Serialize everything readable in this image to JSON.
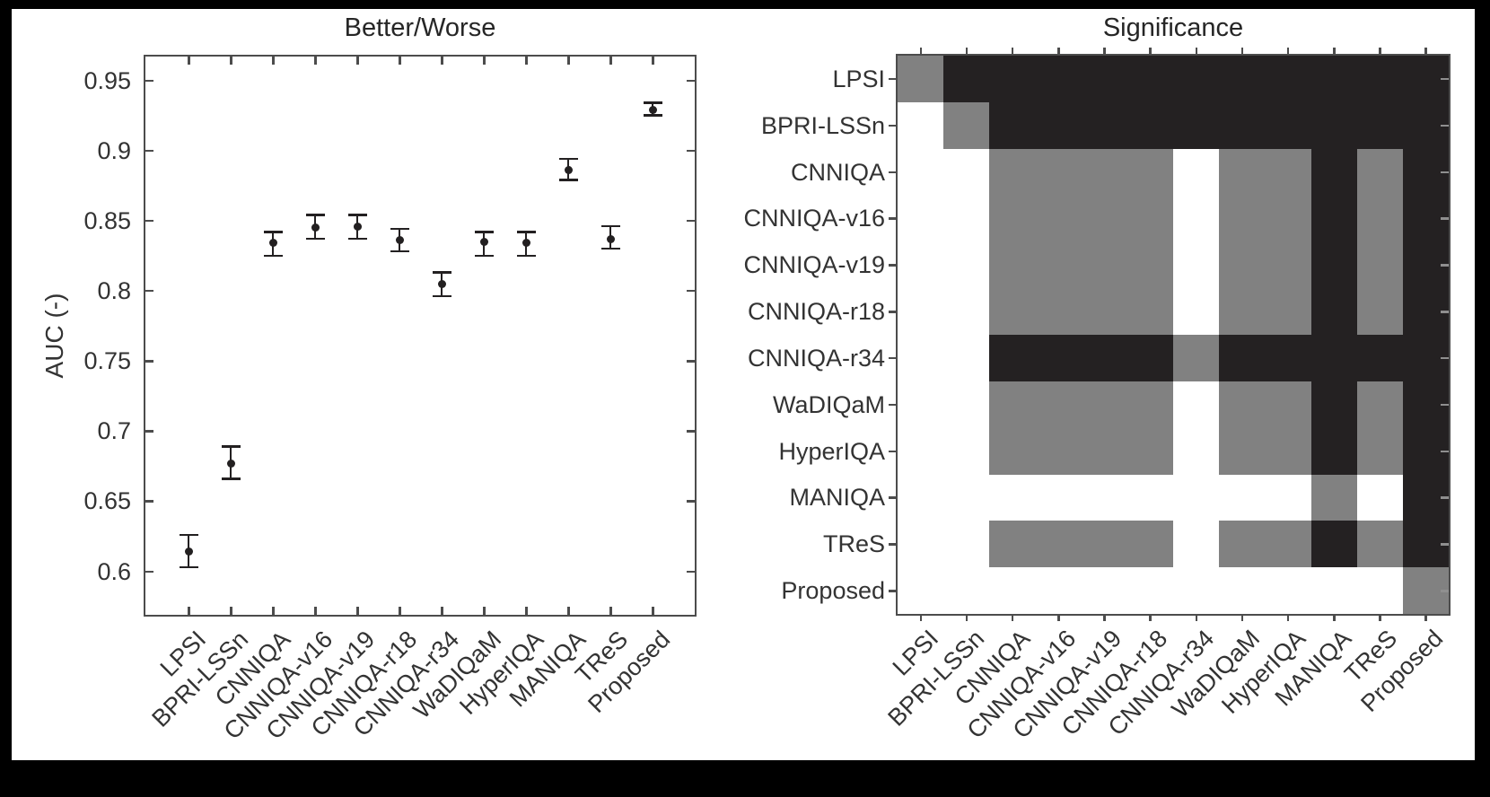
{
  "figure": {
    "panels": [
      {
        "title": "Better/Worse"
      },
      {
        "title": "Significance"
      }
    ]
  },
  "chart_data": [
    {
      "type": "scatter",
      "subtype": "errorbar",
      "title": "Better/Worse",
      "xlabel": "",
      "ylabel": "AUC (-)",
      "categories": [
        "LPSI",
        "BPRI-LSSn",
        "CNNIQA",
        "CNNIQA-v16",
        "CNNIQA-v19",
        "CNNIQA-r18",
        "CNNIQA-r34",
        "WaDIQaM",
        "HyperIQA",
        "MANIQA",
        "TReS",
        "Proposed"
      ],
      "values": [
        0.614,
        0.677,
        0.834,
        0.845,
        0.846,
        0.836,
        0.805,
        0.835,
        0.834,
        0.886,
        0.837,
        0.929
      ],
      "err_low": [
        0.603,
        0.666,
        0.825,
        0.837,
        0.837,
        0.828,
        0.796,
        0.825,
        0.825,
        0.879,
        0.83,
        0.925
      ],
      "err_high": [
        0.626,
        0.689,
        0.842,
        0.854,
        0.854,
        0.844,
        0.813,
        0.842,
        0.842,
        0.894,
        0.846,
        0.934
      ],
      "ylim": [
        0.569,
        0.967
      ],
      "yticks": [
        0.6,
        0.65,
        0.7,
        0.75,
        0.8,
        0.85,
        0.9,
        0.95
      ],
      "ytick_labels": [
        "0.6",
        "0.65",
        "0.7",
        "0.75",
        "0.8",
        "0.85",
        "0.9",
        "0.95"
      ],
      "grid": false,
      "legend": false,
      "marker": "dot-with-error-bars",
      "marker_color": "#232021"
    },
    {
      "type": "heatmap",
      "title": "Significance",
      "rows": [
        "LPSI",
        "BPRI-LSSn",
        "CNNIQA",
        "CNNIQA-v16",
        "CNNIQA-v19",
        "CNNIQA-r18",
        "CNNIQA-r34",
        "WaDIQaM",
        "HyperIQA",
        "MANIQA",
        "TReS",
        "Proposed"
      ],
      "cols": [
        "LPSI",
        "BPRI-LSSn",
        "CNNIQA",
        "CNNIQA-v16",
        "CNNIQA-v19",
        "CNNIQA-r18",
        "CNNIQA-r34",
        "WaDIQaM",
        "HyperIQA",
        "MANIQA",
        "TReS",
        "Proposed"
      ],
      "cells": [
        "gbbbbbbbbbbb",
        "wgbbbbbbbbbb",
        "wwggggwggbgb",
        "wwggggwggbgb",
        "wwggggwggbgb",
        "wwggggwggbgb",
        "wwbbbbgbbbbb",
        "wwggggwggbgb",
        "wwggggwggbgb",
        "wwwwwwwwwgwb",
        "wwggggwggbgb",
        "wwwwwwwwwwwg"
      ],
      "palette": {
        "w": "#ffffff",
        "g": "#818181",
        "b": "#242122"
      },
      "grid": false,
      "legend": false
    }
  ]
}
